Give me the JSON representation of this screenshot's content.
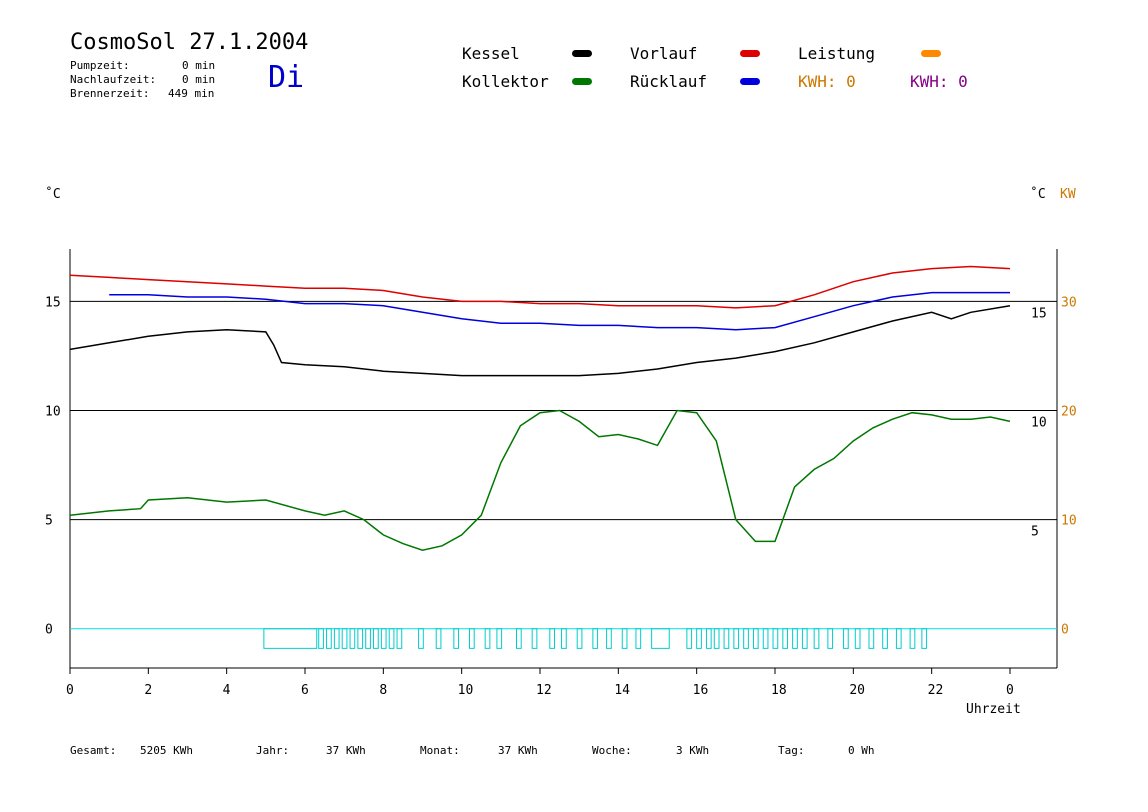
{
  "header": {
    "title": "CosmoSol 27.1.2004",
    "day": "Di",
    "stats": [
      {
        "label": "Pumpzeit:",
        "value": "0 min"
      },
      {
        "label": "Nachlaufzeit:",
        "value": "0 min"
      },
      {
        "label": "Brennerzeit:",
        "value": "449 min"
      }
    ]
  },
  "legend": {
    "items": [
      {
        "label": "Kessel",
        "color": "#000000"
      },
      {
        "label": "Kollektor",
        "color": "#007700"
      },
      {
        "label": "Vorlauf",
        "color": "#dd0000"
      },
      {
        "label": "Rücklauf",
        "color": "#0000dd"
      },
      {
        "label": "Leistung",
        "color": "#ff8800"
      }
    ],
    "kwh_left": "KWH: 0",
    "kwh_right": "KWH: 0",
    "kwh_left_color": "#cc7700",
    "kwh_right_color": "#880088"
  },
  "axes": {
    "left_unit": "˚C",
    "right_unit": "˚C",
    "right_unit_kw": "KW",
    "xlabel": "Uhrzeit"
  },
  "footer": [
    {
      "label": "Gesamt:",
      "value": "5205 KWh"
    },
    {
      "label": "Jahr:",
      "value": "37 KWh"
    },
    {
      "label": "Monat:",
      "value": "37 KWh"
    },
    {
      "label": "Woche:",
      "value": "3 KWh"
    },
    {
      "label": "Tag:",
      "value": "0 Wh"
    }
  ],
  "chart_data": {
    "type": "line",
    "x_ticks": [
      "0",
      "2",
      "4",
      "6",
      "8",
      "10",
      "12",
      "14",
      "16",
      "18",
      "20",
      "22",
      "0"
    ],
    "left_ticks": [
      "15",
      "10",
      "5",
      "0"
    ],
    "left_tick_values": [
      15,
      10,
      5,
      0
    ],
    "inner_right_ticks": [
      "15",
      "10",
      "5"
    ],
    "right_ticks_kw": [
      "30",
      "20",
      "10",
      "0"
    ],
    "xlim": [
      0,
      24
    ],
    "ylim": [
      -1.8,
      17.4
    ],
    "grid_y": [
      0,
      5,
      10,
      15
    ],
    "series": [
      {
        "name": "Vorlauf",
        "color": "#dd0000",
        "x": [
          0,
          1,
          2,
          3,
          4,
          5,
          6,
          7,
          8,
          9,
          10,
          11,
          12,
          13,
          14,
          15,
          16,
          17,
          18,
          19,
          20,
          21,
          22,
          23,
          24
        ],
        "y": [
          16.2,
          16.1,
          16.0,
          15.9,
          15.8,
          15.7,
          15.6,
          15.6,
          15.5,
          15.2,
          15.0,
          15.0,
          14.9,
          14.9,
          14.8,
          14.8,
          14.8,
          14.7,
          14.8,
          15.3,
          15.9,
          16.3,
          16.5,
          16.6,
          16.5
        ]
      },
      {
        "name": "Rücklauf",
        "color": "#0000dd",
        "x": [
          1,
          2,
          3,
          4,
          5,
          6,
          7,
          8,
          9,
          10,
          11,
          12,
          13,
          14,
          15,
          16,
          17,
          18,
          19,
          20,
          21,
          22,
          23,
          24
        ],
        "y": [
          15.3,
          15.3,
          15.2,
          15.2,
          15.1,
          14.9,
          14.9,
          14.8,
          14.5,
          14.2,
          14.0,
          14.0,
          13.9,
          13.9,
          13.8,
          13.8,
          13.7,
          13.8,
          14.3,
          14.8,
          15.2,
          15.4,
          15.4,
          15.4
        ]
      },
      {
        "name": "Kessel",
        "color": "#000000",
        "x": [
          0,
          1,
          2,
          3,
          4,
          5,
          5.2,
          5.4,
          6,
          7,
          8,
          9,
          10,
          11,
          12,
          13,
          14,
          15,
          16,
          17,
          18,
          19,
          20,
          21,
          22,
          22.5,
          23,
          24
        ],
        "y": [
          12.8,
          13.1,
          13.4,
          13.6,
          13.7,
          13.6,
          13.0,
          12.2,
          12.1,
          12.0,
          11.8,
          11.7,
          11.6,
          11.6,
          11.6,
          11.6,
          11.7,
          11.9,
          12.2,
          12.4,
          12.7,
          13.1,
          13.6,
          14.1,
          14.5,
          14.2,
          14.5,
          14.8
        ]
      },
      {
        "name": "Kollektor",
        "color": "#007700",
        "x": [
          0,
          1,
          1.8,
          2,
          3,
          4,
          5,
          6,
          6.5,
          7,
          7.5,
          8,
          8.5,
          9,
          9.5,
          10,
          10.5,
          11,
          11.5,
          12,
          12.5,
          13,
          13.5,
          14,
          14.5,
          15,
          15.5,
          16,
          16.5,
          17,
          17.5,
          18,
          18.5,
          19,
          19.5,
          20,
          20.5,
          21,
          21.5,
          22,
          22.5,
          23,
          23.5,
          24
        ],
        "y": [
          5.2,
          5.4,
          5.5,
          5.9,
          6.0,
          5.8,
          5.9,
          5.4,
          5.2,
          5.4,
          5.0,
          4.3,
          3.9,
          3.6,
          3.8,
          4.3,
          5.2,
          7.6,
          9.3,
          9.9,
          10.0,
          9.5,
          8.8,
          8.9,
          8.7,
          8.4,
          10.0,
          9.9,
          8.6,
          5.0,
          4.0,
          4.0,
          6.5,
          7.3,
          7.8,
          8.6,
          9.2,
          9.6,
          9.9,
          9.8,
          9.6,
          9.6,
          9.7,
          9.5
        ]
      }
    ],
    "cyan_pulses_x": [
      4.95,
      5.1,
      5.25,
      5.4,
      5.55,
      5.7,
      5.85,
      6.0,
      6.15,
      6.35,
      6.55,
      6.75,
      6.95,
      7.15,
      7.35,
      7.55,
      7.75,
      7.95,
      8.15,
      8.35,
      8.9,
      9.35,
      9.8,
      10.2,
      10.6,
      10.9,
      11.4,
      11.8,
      12.25,
      12.55,
      12.95,
      13.35,
      13.7,
      14.1,
      14.45,
      14.85,
      15.1,
      15.35,
      15.55,
      15.75,
      16.0,
      16.25,
      16.45,
      16.7,
      16.95,
      17.2,
      17.45,
      17.7,
      17.95,
      18.2,
      18.45,
      18.7,
      19.0,
      19.35,
      19.75,
      20.05,
      20.4,
      20.75,
      21.1,
      21.45,
      21.75
    ],
    "cyan_pulse_width_hours": [
      1.35,
      0,
      0,
      0,
      0,
      0,
      0,
      0,
      0,
      0.12,
      0.12,
      0.12,
      0.12,
      0.12,
      0.12,
      0.12,
      0.12,
      0.12,
      0.12,
      0.12,
      0.12,
      0.12,
      0.12,
      0.12,
      0.12,
      0.12,
      0.12,
      0.12,
      0.12,
      0.12,
      0.12,
      0.12,
      0.12,
      0.12,
      0.12,
      0.45,
      0,
      0,
      0,
      0.12,
      0.12,
      0.12,
      0.12,
      0.12,
      0.12,
      0.12,
      0.12,
      0.12,
      0.12,
      0.12,
      0.12,
      0.12,
      0.12,
      0.12,
      0.12,
      0.12,
      0.12,
      0.12,
      0.12,
      0.12,
      0.12
    ],
    "cyan_pulse_depth": 0.9
  }
}
